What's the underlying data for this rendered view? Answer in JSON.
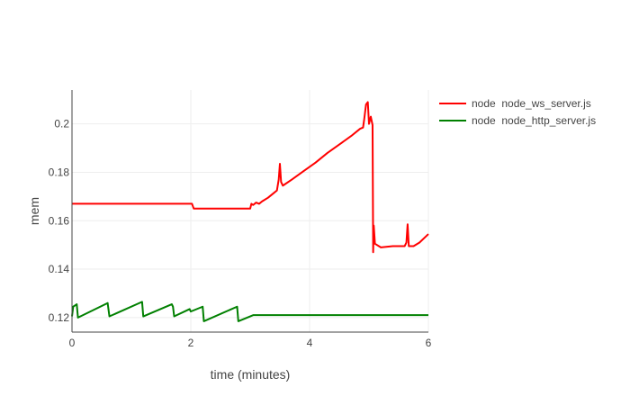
{
  "chart_data": {
    "type": "line",
    "xlabel": "time (minutes)",
    "ylabel": "mem",
    "xlim": [
      0,
      6
    ],
    "ylim": [
      0.114,
      0.214
    ],
    "x_ticks": [
      0,
      2,
      4,
      6
    ],
    "y_ticks": [
      0.12,
      0.14,
      0.16,
      0.18,
      0.2
    ],
    "x_tick_labels": [
      "0",
      "2",
      "4",
      "6"
    ],
    "y_tick_labels": [
      "0.12",
      "0.14",
      "0.16",
      "0.18",
      "0.2"
    ],
    "grid": true,
    "legend_position": "top-right",
    "series": [
      {
        "name": "node  node_ws_server.js",
        "color": "#ff0000",
        "points": [
          [
            0,
            0.167
          ],
          [
            0.5,
            0.167
          ],
          [
            1.0,
            0.167
          ],
          [
            1.5,
            0.167
          ],
          [
            2.02,
            0.167
          ],
          [
            2.05,
            0.165
          ],
          [
            2.5,
            0.165
          ],
          [
            3.0,
            0.165
          ],
          [
            3.02,
            0.167
          ],
          [
            3.05,
            0.1665
          ],
          [
            3.1,
            0.1675
          ],
          [
            3.15,
            0.167
          ],
          [
            3.2,
            0.168
          ],
          [
            3.3,
            0.1695
          ],
          [
            3.4,
            0.1715
          ],
          [
            3.45,
            0.1725
          ],
          [
            3.48,
            0.177
          ],
          [
            3.5,
            0.1835
          ],
          [
            3.52,
            0.176
          ],
          [
            3.55,
            0.1745
          ],
          [
            3.7,
            0.177
          ],
          [
            3.9,
            0.1805
          ],
          [
            4.1,
            0.184
          ],
          [
            4.3,
            0.188
          ],
          [
            4.5,
            0.1915
          ],
          [
            4.7,
            0.195
          ],
          [
            4.85,
            0.198
          ],
          [
            4.9,
            0.1985
          ],
          [
            4.92,
            0.202
          ],
          [
            4.95,
            0.208
          ],
          [
            4.98,
            0.209
          ],
          [
            5.0,
            0.2
          ],
          [
            5.03,
            0.203
          ],
          [
            5.06,
            0.1995
          ],
          [
            5.07,
            0.147
          ],
          [
            5.08,
            0.158
          ],
          [
            5.1,
            0.1505
          ],
          [
            5.2,
            0.149
          ],
          [
            5.4,
            0.1495
          ],
          [
            5.6,
            0.1495
          ],
          [
            5.63,
            0.151
          ],
          [
            5.65,
            0.1585
          ],
          [
            5.67,
            0.1495
          ],
          [
            5.75,
            0.1495
          ],
          [
            5.85,
            0.151
          ],
          [
            6.0,
            0.1545
          ]
        ]
      },
      {
        "name": "node  node_http_server.js",
        "color": "#008000",
        "points": [
          [
            0,
            0.1205
          ],
          [
            0.02,
            0.1245
          ],
          [
            0.05,
            0.125
          ],
          [
            0.08,
            0.1255
          ],
          [
            0.1,
            0.12
          ],
          [
            0.6,
            0.126
          ],
          [
            0.63,
            0.1205
          ],
          [
            1.18,
            0.1265
          ],
          [
            1.2,
            0.1205
          ],
          [
            1.68,
            0.1255
          ],
          [
            1.7,
            0.1245
          ],
          [
            1.72,
            0.1205
          ],
          [
            1.98,
            0.1235
          ],
          [
            2.0,
            0.1225
          ],
          [
            2.2,
            0.1245
          ],
          [
            2.22,
            0.1185
          ],
          [
            2.78,
            0.1245
          ],
          [
            2.8,
            0.1185
          ],
          [
            3.05,
            0.121
          ],
          [
            4.0,
            0.121
          ],
          [
            5.0,
            0.121
          ],
          [
            6.0,
            0.121
          ]
        ]
      }
    ]
  }
}
